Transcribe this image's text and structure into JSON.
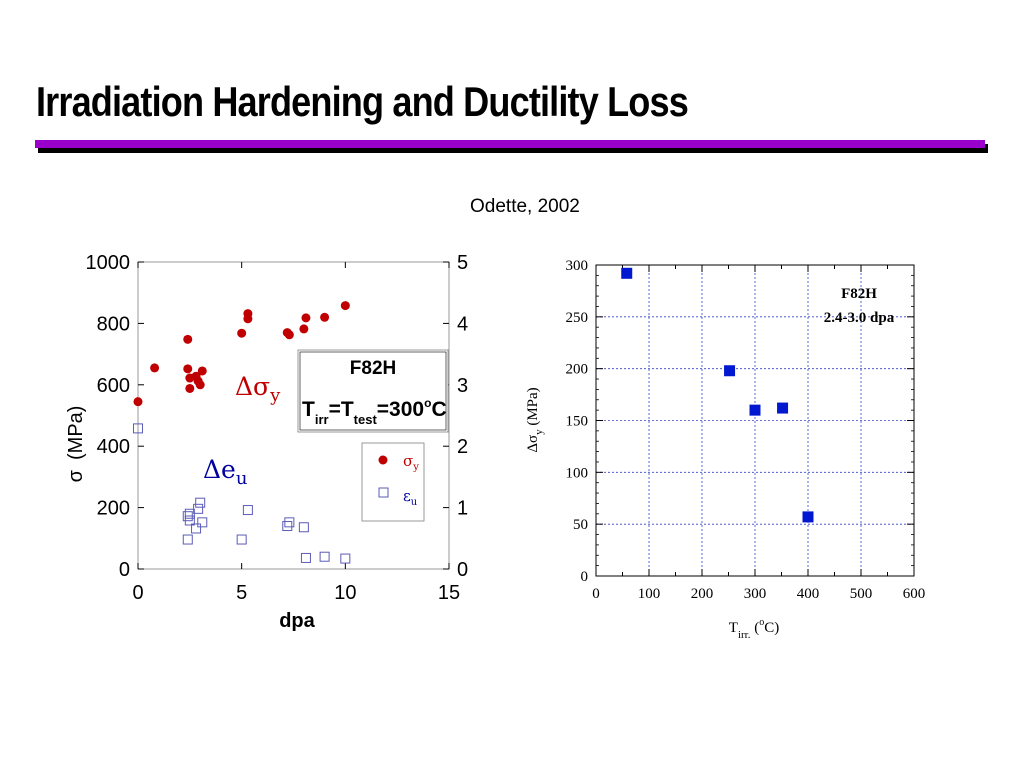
{
  "slide": {
    "title": "Irradiation Hardening and Ductility Loss",
    "citation": "Odette, 2002"
  },
  "chart_data": [
    {
      "type": "scatter",
      "xlabel": "dpa",
      "ylabel": "σ",
      "ylabel_unit": "(MPa)",
      "xlim": [
        0,
        15
      ],
      "ylim": [
        0,
        1000
      ],
      "y2lim": [
        0,
        5
      ],
      "x_ticks": [
        "0",
        "5",
        "10",
        "15"
      ],
      "y_ticks": [
        "0",
        "200",
        "400",
        "600",
        "800",
        "1000"
      ],
      "y2_ticks": [
        "0",
        "1",
        "2",
        "3",
        "4",
        "5"
      ],
      "material_box": {
        "material": "F82H",
        "condition": "T",
        "sub1": "irr",
        "eq": "=T",
        "sub2": "test",
        "temp": "=300",
        "deg": "o",
        "unit": "C"
      },
      "annotations": {
        "sigma_delta": "Δσ",
        "sigma_sub": "y",
        "eu_delta": "Δe",
        "eu_sub": "u"
      },
      "legend": {
        "position": "right",
        "entries": [
          {
            "symbol": "σ",
            "sub": "y",
            "marker": "filled-circle"
          },
          {
            "symbol": "ε",
            "sub": "u",
            "marker": "open-square"
          }
        ]
      },
      "series": [
        {
          "axis": "left",
          "marker": "filled-circle",
          "color": "#c00000",
          "points": [
            {
              "x": 0,
              "y": 545
            },
            {
              "x": 0.8,
              "y": 655
            },
            {
              "x": 2.4,
              "y": 748
            },
            {
              "x": 2.4,
              "y": 652
            },
            {
              "x": 2.5,
              "y": 622
            },
            {
              "x": 2.5,
              "y": 588
            },
            {
              "x": 2.8,
              "y": 628
            },
            {
              "x": 2.9,
              "y": 612
            },
            {
              "x": 3.0,
              "y": 600
            },
            {
              "x": 3.1,
              "y": 645
            },
            {
              "x": 5.0,
              "y": 768
            },
            {
              "x": 5.3,
              "y": 832
            },
            {
              "x": 5.3,
              "y": 815
            },
            {
              "x": 7.2,
              "y": 770
            },
            {
              "x": 7.3,
              "y": 763
            },
            {
              "x": 8.0,
              "y": 782
            },
            {
              "x": 8.1,
              "y": 818
            },
            {
              "x": 9.0,
              "y": 820
            },
            {
              "x": 10.0,
              "y": 858
            }
          ]
        },
        {
          "axis": "right",
          "marker": "open-square",
          "color": "#5b5bb8",
          "points": [
            {
              "x": 0,
              "y": 2.29
            },
            {
              "x": 2.4,
              "y": 0.86
            },
            {
              "x": 2.5,
              "y": 0.79
            },
            {
              "x": 2.5,
              "y": 0.9
            },
            {
              "x": 2.8,
              "y": 0.66
            },
            {
              "x": 2.9,
              "y": 0.98
            },
            {
              "x": 3.0,
              "y": 1.08
            },
            {
              "x": 3.1,
              "y": 0.76
            },
            {
              "x": 2.4,
              "y": 0.48
            },
            {
              "x": 5.0,
              "y": 0.48
            },
            {
              "x": 5.3,
              "y": 0.96
            },
            {
              "x": 7.2,
              "y": 0.7
            },
            {
              "x": 7.3,
              "y": 0.76
            },
            {
              "x": 8.0,
              "y": 0.68
            },
            {
              "x": 8.1,
              "y": 0.18
            },
            {
              "x": 9.0,
              "y": 0.2
            },
            {
              "x": 10.0,
              "y": 0.17
            }
          ]
        }
      ]
    },
    {
      "type": "scatter",
      "xlabel": "T",
      "xlabel_sub": "irr.",
      "xlabel_unit_open": " (",
      "xlabel_deg": "o",
      "xlabel_unit_close": "C)",
      "ylabel": "Δσ",
      "ylabel_sub": "y",
      "ylabel_unit": " (MPa)",
      "xlim": [
        0,
        600
      ],
      "ylim": [
        0,
        300
      ],
      "x_ticks": [
        "0",
        "100",
        "200",
        "300",
        "400",
        "500",
        "600"
      ],
      "y_ticks": [
        "0",
        "50",
        "100",
        "150",
        "200",
        "250",
        "300"
      ],
      "grid": true,
      "legend": {
        "position": "top-right",
        "line1": "F82H",
        "line2": "2.4-3.0 dpa"
      },
      "series": [
        {
          "marker": "filled-square",
          "color": "#0018d0",
          "points": [
            {
              "x": 58,
              "y": 292
            },
            {
              "x": 252,
              "y": 198
            },
            {
              "x": 300,
              "y": 160
            },
            {
              "x": 352,
              "y": 162
            },
            {
              "x": 400,
              "y": 57
            }
          ]
        }
      ]
    }
  ]
}
